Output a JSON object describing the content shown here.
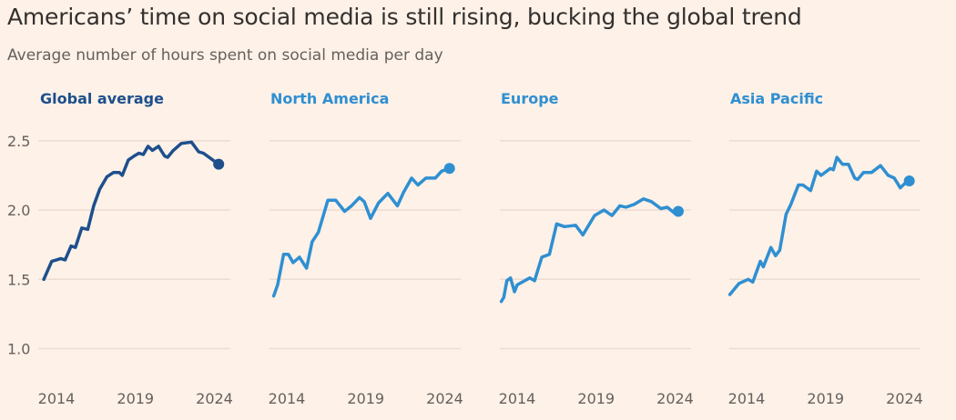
{
  "chart_data": {
    "type": "line",
    "title": "Americans’ time on social media is still rising, bucking the global trend",
    "subtitle": "Average number of hours spent on social media per day",
    "ylim": [
      1.0,
      2.5
    ],
    "y_ticks": [
      "2.5",
      "2.0",
      "1.5",
      "1.0"
    ],
    "y_tick_values": [
      2.5,
      2.0,
      1.5,
      1.0
    ],
    "x_ticks": [
      "2014",
      "2019",
      "2024"
    ],
    "x_tick_values": [
      2014,
      2019,
      2024
    ],
    "grid": true,
    "colors": {
      "background": "#fdf1e8",
      "global": "#1d4f8c",
      "regional": "#2f8fd1",
      "grid": "#eddcd0"
    },
    "panels": [
      {
        "name": "Global average",
        "color": "#1d4f8c",
        "x": [
          2013.2,
          2013.7,
          2014.0,
          2014.27,
          2014.55,
          2014.93,
          2015.2,
          2015.6,
          2015.98,
          2016.36,
          2016.74,
          2017.2,
          2017.6,
          2017.98,
          2018.17,
          2018.55,
          2018.93,
          2019.22,
          2019.5,
          2019.8,
          2020.07,
          2020.46,
          2020.84,
          2021.03,
          2021.4,
          2021.9,
          2022.55,
          2023.0,
          2023.3,
          2024.27
        ],
        "y": [
          1.5,
          1.63,
          1.64,
          1.65,
          1.64,
          1.74,
          1.73,
          1.87,
          1.86,
          2.03,
          2.15,
          2.24,
          2.27,
          2.27,
          2.25,
          2.36,
          2.39,
          2.41,
          2.4,
          2.46,
          2.43,
          2.46,
          2.39,
          2.38,
          2.43,
          2.48,
          2.49,
          2.42,
          2.41,
          2.33
        ]
      },
      {
        "name": "North America",
        "color": "#2f8fd1",
        "x": [
          2013.17,
          2013.42,
          2013.8,
          2014.1,
          2014.4,
          2014.8,
          2015.25,
          2015.6,
          2016.0,
          2016.6,
          2017.1,
          2017.66,
          2018.1,
          2018.6,
          2018.9,
          2019.3,
          2019.8,
          2020.4,
          2021.0,
          2021.4,
          2021.9,
          2022.3,
          2022.8,
          2023.4,
          2023.8,
          2024.3
        ],
        "y": [
          1.38,
          1.46,
          1.68,
          1.68,
          1.62,
          1.66,
          1.58,
          1.77,
          1.84,
          2.07,
          2.07,
          1.99,
          2.03,
          2.09,
          2.06,
          1.94,
          2.05,
          2.12,
          2.03,
          2.13,
          2.23,
          2.18,
          2.23,
          2.23,
          2.28,
          2.3
        ]
      },
      {
        "name": "Europe",
        "color": "#2f8fd1",
        "x": [
          2013.0,
          2013.15,
          2013.35,
          2013.58,
          2013.83,
          2014.0,
          2014.8,
          2015.1,
          2015.56,
          2016.04,
          2016.5,
          2017.0,
          2017.7,
          2018.16,
          2018.9,
          2019.5,
          2020.0,
          2020.5,
          2020.9,
          2021.4,
          2022.0,
          2022.5,
          2023.1,
          2023.5,
          2023.94,
          2024.2
        ],
        "y": [
          1.34,
          1.37,
          1.49,
          1.51,
          1.41,
          1.46,
          1.51,
          1.49,
          1.66,
          1.68,
          1.9,
          1.88,
          1.89,
          1.82,
          1.96,
          2.0,
          1.96,
          2.03,
          2.02,
          2.04,
          2.08,
          2.06,
          2.01,
          2.02,
          1.98,
          1.99
        ]
      },
      {
        "name": "Asia Pacific",
        "color": "#2f8fd1",
        "x": [
          2012.94,
          2013.52,
          2014.1,
          2014.39,
          2014.87,
          2015.06,
          2015.54,
          2015.83,
          2016.1,
          2016.5,
          2016.8,
          2017.28,
          2017.57,
          2018.05,
          2018.43,
          2018.72,
          2019.3,
          2019.49,
          2019.72,
          2020.07,
          2020.45,
          2020.84,
          2021.03,
          2021.4,
          2021.9,
          2022.48,
          2022.96,
          2023.35,
          2023.73,
          2024.1,
          2024.3
        ],
        "y": [
          1.39,
          1.47,
          1.5,
          1.48,
          1.63,
          1.59,
          1.73,
          1.67,
          1.71,
          1.97,
          2.04,
          2.18,
          2.18,
          2.14,
          2.28,
          2.25,
          2.3,
          2.29,
          2.38,
          2.33,
          2.33,
          2.23,
          2.22,
          2.27,
          2.27,
          2.32,
          2.25,
          2.23,
          2.16,
          2.2,
          2.21
        ]
      }
    ]
  }
}
